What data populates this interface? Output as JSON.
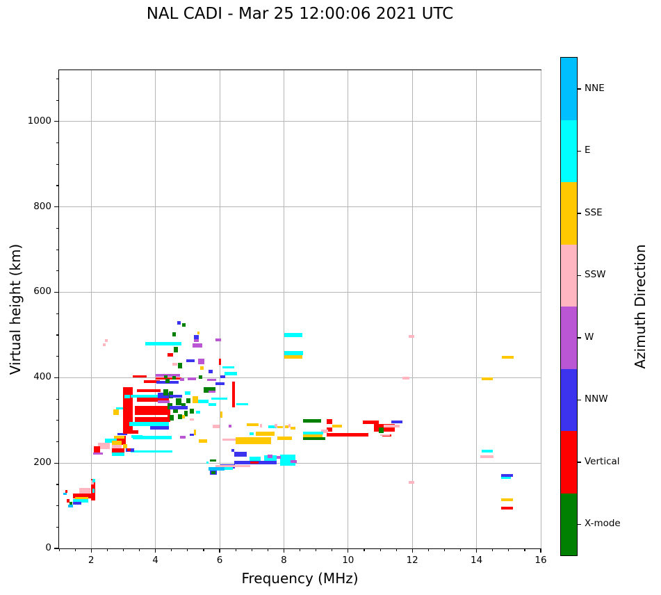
{
  "title": "NAL CADI - Mar 25 12:00:06 2021 UTC",
  "axes": {
    "xlabel": "Frequency (MHz)",
    "ylabel": "Virtual height (km)",
    "xlim": [
      1,
      16
    ],
    "ylim": [
      0,
      1120
    ],
    "x_ticks": [
      2,
      4,
      6,
      8,
      10,
      12,
      14,
      16
    ],
    "y_ticks": [
      0,
      200,
      400,
      600,
      800,
      1000
    ],
    "x_minor_step": 0.5,
    "y_minor_step": 50,
    "grid": true,
    "grid_color": "#b5b5b5"
  },
  "colorbar": {
    "label": "Azimuth Direction",
    "categories": [
      {
        "label": "NNE",
        "color": "#00BFFF"
      },
      {
        "label": "E",
        "color": "#00FFFF"
      },
      {
        "label": "SSE",
        "color": "#FFC800"
      },
      {
        "label": "SSW",
        "color": "#FFB6C1"
      },
      {
        "label": "W",
        "color": "#BA55D3"
      },
      {
        "label": "NNW",
        "color": "#3B33EE"
      },
      {
        "label": "Vertical",
        "color": "#FF0000"
      },
      {
        "label": "X-mode",
        "color": "#008000"
      }
    ]
  },
  "chart_data": {
    "type": "scatter",
    "title": "NAL CADI - Mar 25 12:00:06 2021 UTC",
    "xlabel": "Frequency (MHz)",
    "ylabel": "Virtual height (km)",
    "xlim": [
      1,
      16
    ],
    "ylim": [
      0,
      1120
    ],
    "grid": true,
    "legend_position": "right colorbar",
    "legend_title": "Azimuth Direction",
    "categories": [
      "NNE",
      "E",
      "SSE",
      "SSW",
      "W",
      "NNW",
      "Vertical",
      "X-mode"
    ],
    "points_format": [
      "freq_min_MHz",
      "freq_max_MHz",
      "height_min_km",
      "height_max_km",
      "azimuth_direction"
    ],
    "points": [
      [
        1.63,
        1.97,
        120,
        141,
        "SSW"
      ],
      [
        1.43,
        1.99,
        117,
        128,
        "Vertical"
      ],
      [
        1.5,
        1.91,
        115,
        120,
        "SSE"
      ],
      [
        1.43,
        1.91,
        108,
        115,
        "E"
      ],
      [
        1.43,
        1.69,
        102,
        109,
        "NNW"
      ],
      [
        1.28,
        1.43,
        96,
        102,
        "NNE"
      ],
      [
        1.24,
        1.32,
        108,
        115,
        "Vertical"
      ],
      [
        1.33,
        1.41,
        102,
        109,
        "X-mode"
      ],
      [
        1.19,
        1.27,
        131,
        137,
        "Vertical"
      ],
      [
        1.13,
        1.24,
        126,
        131,
        "NNE"
      ],
      [
        1.99,
        2.12,
        113,
        162,
        "Vertical"
      ],
      [
        2.03,
        2.1,
        130,
        140,
        "E"
      ],
      [
        2.0,
        2.08,
        150,
        160,
        "SSW"
      ],
      [
        2.04,
        2.12,
        155,
        163,
        "E"
      ],
      [
        2.21,
        2.58,
        232,
        247,
        "SSW"
      ],
      [
        2.08,
        2.28,
        222,
        240,
        "Vertical"
      ],
      [
        2.42,
        2.81,
        248,
        257,
        "E"
      ],
      [
        2.79,
        3.07,
        243,
        263,
        "Vertical"
      ],
      [
        2.72,
        3.03,
        258,
        263,
        "SSE"
      ],
      [
        2.06,
        2.36,
        219,
        225,
        "W"
      ],
      [
        2.82,
        3.12,
        265,
        270,
        "NNW"
      ],
      [
        3.12,
        3.46,
        268,
        276,
        "Vertical"
      ],
      [
        3.25,
        3.6,
        259,
        266,
        "E"
      ],
      [
        2.64,
        3.03,
        217,
        224,
        "E"
      ],
      [
        2.64,
        3.03,
        224,
        234,
        "Vertical"
      ],
      [
        2.64,
        2.95,
        234,
        244,
        "SSW"
      ],
      [
        2.64,
        2.95,
        243,
        253,
        "SSE"
      ],
      [
        2.68,
        2.86,
        313,
        325,
        "SSE"
      ],
      [
        2.77,
        3.03,
        325,
        330,
        "E"
      ],
      [
        2.42,
        2.51,
        484,
        490,
        "SSW"
      ],
      [
        2.36,
        2.44,
        474,
        480,
        "SSW"
      ],
      [
        2.99,
        3.29,
        268,
        377,
        "Vertical"
      ],
      [
        3.03,
        3.2,
        351,
        360,
        "E"
      ],
      [
        2.99,
        3.12,
        235,
        245,
        "SSE"
      ],
      [
        3.35,
        4.47,
        313,
        333,
        "Vertical"
      ],
      [
        3.35,
        4.47,
        297,
        308,
        "Vertical"
      ],
      [
        3.42,
        4.41,
        344,
        354,
        "Vertical"
      ],
      [
        3.42,
        4.15,
        366,
        373,
        "Vertical"
      ],
      [
        3.24,
        4.47,
        354,
        360,
        "E"
      ],
      [
        3.18,
        4.41,
        286,
        296,
        "E"
      ],
      [
        3.83,
        4.43,
        279,
        286,
        "NNW"
      ],
      [
        3.29,
        4.5,
        255,
        263,
        "E"
      ],
      [
        3.24,
        4.52,
        224,
        230,
        "E"
      ],
      [
        3.07,
        3.33,
        227,
        235,
        "NNW"
      ],
      [
        3.12,
        3.22,
        228,
        234,
        "Vertical"
      ],
      [
        3.63,
        4.13,
        388,
        394,
        "Vertical"
      ],
      [
        3.29,
        3.72,
        400,
        406,
        "Vertical"
      ],
      [
        4.04,
        4.73,
        385,
        392,
        "NNW"
      ],
      [
        4.0,
        4.76,
        402,
        409,
        "W"
      ],
      [
        4.0,
        4.8,
        396,
        401,
        "Vertical"
      ],
      [
        4.26,
        4.37,
        399,
        406,
        "X-mode"
      ],
      [
        5.34,
        5.45,
        398,
        406,
        "X-mode"
      ],
      [
        4.76,
        4.9,
        393,
        399,
        "W"
      ],
      [
        5.01,
        5.27,
        394,
        400,
        "W"
      ],
      [
        5.6,
        5.9,
        392,
        398,
        "W"
      ],
      [
        5.51,
        5.88,
        365,
        377,
        "X-mode"
      ],
      [
        5.88,
        6.16,
        383,
        389,
        "NNW"
      ],
      [
        5.73,
        6.24,
        349,
        354,
        "E"
      ],
      [
        3.68,
        4.8,
        476,
        483,
        "E"
      ],
      [
        4.07,
        4.54,
        351,
        364,
        "NNW"
      ],
      [
        4.07,
        4.45,
        341,
        347,
        "W"
      ],
      [
        4.24,
        4.39,
        358,
        372,
        "X-mode"
      ],
      [
        4.41,
        4.56,
        352,
        368,
        "X-mode"
      ],
      [
        4.37,
        4.52,
        325,
        340,
        "X-mode"
      ],
      [
        4.56,
        4.71,
        318,
        334,
        "X-mode"
      ],
      [
        4.63,
        4.8,
        336,
        352,
        "X-mode"
      ],
      [
        4.8,
        4.93,
        328,
        341,
        "X-mode"
      ],
      [
        4.45,
        4.58,
        300,
        312,
        "X-mode"
      ],
      [
        4.71,
        4.84,
        302,
        315,
        "X-mode"
      ],
      [
        4.89,
        5.01,
        310,
        322,
        "X-mode"
      ],
      [
        5.06,
        5.19,
        315,
        327,
        "X-mode"
      ],
      [
        4.97,
        5.1,
        340,
        352,
        "X-mode"
      ],
      [
        4.31,
        4.45,
        388,
        398,
        "X-mode"
      ],
      [
        4.52,
        4.63,
        395,
        403,
        "X-mode"
      ],
      [
        4.45,
        4.84,
        354,
        360,
        "NNW"
      ],
      [
        4.45,
        5.01,
        325,
        333,
        "NNW"
      ],
      [
        4.37,
        4.45,
        296,
        312,
        "Vertical"
      ],
      [
        4.91,
        5.1,
        360,
        368,
        "E"
      ],
      [
        5.15,
        5.32,
        341,
        357,
        "SSE"
      ],
      [
        4.84,
        4.91,
        304,
        313,
        "SSE"
      ],
      [
        5.06,
        5.19,
        299,
        305,
        "SSW"
      ],
      [
        5.32,
        5.66,
        341,
        349,
        "E"
      ],
      [
        5.27,
        5.4,
        315,
        322,
        "E"
      ],
      [
        4.52,
        4.63,
        497,
        507,
        "X-mode"
      ],
      [
        5.15,
        5.45,
        470,
        480,
        "W"
      ],
      [
        5.19,
        5.36,
        483,
        492,
        "W"
      ],
      [
        5.19,
        5.36,
        490,
        500,
        "NNW"
      ],
      [
        5.3,
        5.38,
        502,
        508,
        "SSE"
      ],
      [
        5.88,
        6.05,
        485,
        492,
        "W"
      ],
      [
        4.37,
        4.54,
        450,
        457,
        "Vertical"
      ],
      [
        4.97,
        5.23,
        437,
        443,
        "NNW"
      ],
      [
        4.58,
        4.71,
        459,
        472,
        "X-mode"
      ],
      [
        4.71,
        4.84,
        422,
        435,
        "X-mode"
      ],
      [
        5.32,
        5.53,
        432,
        445,
        "W"
      ],
      [
        5.4,
        5.51,
        419,
        427,
        "SSE"
      ],
      [
        5.66,
        5.79,
        411,
        418,
        "NNW"
      ],
      [
        4.52,
        4.67,
        428,
        434,
        "SSW"
      ],
      [
        6.09,
        6.46,
        421,
        427,
        "E"
      ],
      [
        6.16,
        6.55,
        406,
        414,
        "E"
      ],
      [
        6.03,
        6.18,
        399,
        405,
        "NNW"
      ],
      [
        5.97,
        6.05,
        429,
        445,
        "Vertical"
      ],
      [
        6.38,
        6.48,
        330,
        390,
        "Vertical"
      ],
      [
        6.53,
        6.89,
        335,
        341,
        "E"
      ],
      [
        5.66,
        5.9,
        334,
        340,
        "E"
      ],
      [
        5.66,
        5.88,
        364,
        370,
        "W"
      ],
      [
        4.67,
        4.78,
        524,
        532,
        "NNW"
      ],
      [
        4.84,
        4.95,
        519,
        527,
        "X-mode"
      ],
      [
        5.78,
        6.0,
        281,
        289,
        "SSW"
      ],
      [
        6.03,
        6.09,
        306,
        320,
        "SSE"
      ],
      [
        6.09,
        6.55,
        252,
        258,
        "SSW"
      ],
      [
        6.5,
        7.6,
        244,
        260,
        "SSE"
      ],
      [
        7.13,
        7.71,
        263,
        274,
        "SSE"
      ],
      [
        6.85,
        7.22,
        286,
        293,
        "SSE"
      ],
      [
        7.52,
        7.78,
        281,
        288,
        "E"
      ],
      [
        7.26,
        7.33,
        284,
        291,
        "SSW"
      ],
      [
        7.71,
        7.79,
        284,
        291,
        "SSW"
      ],
      [
        8.14,
        8.21,
        284,
        291,
        "SSW"
      ],
      [
        7.8,
        7.97,
        281,
        287,
        "SSE"
      ],
      [
        8.04,
        8.15,
        281,
        288,
        "SSE"
      ],
      [
        8.21,
        8.36,
        279,
        285,
        "SSE"
      ],
      [
        7.8,
        8.25,
        254,
        262,
        "SSE"
      ],
      [
        6.94,
        7.07,
        266,
        272,
        "E"
      ],
      [
        5.36,
        5.62,
        248,
        256,
        "SSE"
      ],
      [
        4.76,
        4.95,
        258,
        263,
        "W"
      ],
      [
        5.06,
        5.19,
        263,
        268,
        "NNW"
      ],
      [
        5.19,
        5.27,
        265,
        279,
        "SSE"
      ],
      [
        6.29,
        6.37,
        284,
        289,
        "W"
      ],
      [
        6.37,
        6.46,
        227,
        232,
        "NNW"
      ],
      [
        6.46,
        6.85,
        215,
        226,
        "NNW"
      ],
      [
        6.46,
        7.78,
        197,
        205,
        "NNW"
      ],
      [
        6.96,
        7.22,
        198,
        203,
        "Vertical"
      ],
      [
        6.94,
        7.28,
        205,
        215,
        "E"
      ],
      [
        7.39,
        7.78,
        205,
        218,
        "E"
      ],
      [
        7.89,
        8.36,
        194,
        220,
        "E"
      ],
      [
        7.5,
        7.65,
        212,
        220,
        "W"
      ],
      [
        7.78,
        7.9,
        210,
        217,
        "W"
      ],
      [
        8.21,
        8.4,
        200,
        207,
        "W"
      ],
      [
        6.03,
        6.48,
        188,
        197,
        "NNW"
      ],
      [
        5.88,
        6.96,
        191,
        196,
        "SSW"
      ],
      [
        5.66,
        6.16,
        182,
        191,
        "NNE"
      ],
      [
        6.16,
        6.42,
        184,
        191,
        "E"
      ],
      [
        5.7,
        5.9,
        203,
        208,
        "X-mode"
      ],
      [
        5.58,
        5.66,
        198,
        204,
        "E"
      ],
      [
        5.7,
        5.92,
        172,
        182,
        "NNW"
      ],
      [
        5.75,
        5.88,
        174,
        180,
        "X-mode"
      ],
      [
        8.01,
        8.57,
        495,
        505,
        "E"
      ],
      [
        8.01,
        8.6,
        453,
        463,
        "E"
      ],
      [
        8.01,
        8.57,
        445,
        453,
        "SSE"
      ],
      [
        8.6,
        9.16,
        295,
        302,
        "X-mode"
      ],
      [
        9.33,
        9.51,
        292,
        302,
        "Vertical"
      ],
      [
        9.33,
        9.51,
        273,
        283,
        "Vertical"
      ],
      [
        9.5,
        9.81,
        283,
        289,
        "SSE"
      ],
      [
        9.16,
        9.38,
        271,
        278,
        "SSW"
      ],
      [
        8.6,
        9.22,
        267,
        273,
        "E"
      ],
      [
        8.6,
        9.2,
        260,
        267,
        "SSE"
      ],
      [
        8.6,
        9.29,
        254,
        260,
        "X-mode"
      ],
      [
        9.33,
        10.63,
        262,
        270,
        "Vertical"
      ],
      [
        11.06,
        11.35,
        262,
        267,
        "Vertical"
      ],
      [
        10.46,
        10.95,
        292,
        300,
        "Vertical"
      ],
      [
        10.8,
        11.45,
        273,
        292,
        "Vertical"
      ],
      [
        11.34,
        11.7,
        293,
        300,
        "NNW"
      ],
      [
        11.1,
        11.6,
        283,
        289,
        "SSW"
      ],
      [
        10.95,
        11.1,
        271,
        283,
        "X-mode"
      ],
      [
        11.0,
        11.3,
        263,
        267,
        "SSW"
      ],
      [
        11.88,
        12.07,
        494,
        500,
        "SSW"
      ],
      [
        11.7,
        11.9,
        396,
        402,
        "SSW"
      ],
      [
        11.88,
        12.07,
        151,
        158,
        "SSW"
      ],
      [
        14.15,
        14.51,
        394,
        400,
        "SSE"
      ],
      [
        14.79,
        15.16,
        444,
        451,
        "SSE"
      ],
      [
        14.15,
        14.51,
        224,
        231,
        "E"
      ],
      [
        14.12,
        14.53,
        211,
        218,
        "SSW"
      ],
      [
        14.77,
        15.14,
        167,
        174,
        "NNW"
      ],
      [
        14.77,
        15.07,
        162,
        167,
        "E"
      ],
      [
        14.77,
        15.14,
        110,
        117,
        "SSE"
      ],
      [
        14.77,
        15.14,
        91,
        97,
        "Vertical"
      ]
    ]
  }
}
